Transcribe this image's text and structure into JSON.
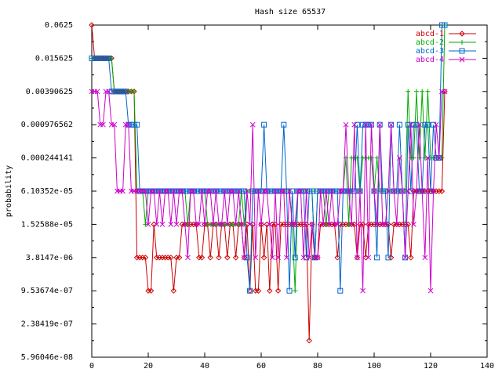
{
  "chart_data": {
    "type": "line",
    "title": "Hash size 65537",
    "xlabel": "",
    "ylabel": "probability",
    "xlim": [
      0,
      140
    ],
    "ylim_log2": [
      -24,
      -4
    ],
    "y_scale": "log2",
    "grid": false,
    "legend_position": "top-right",
    "x_ticks": [
      0,
      20,
      40,
      60,
      80,
      100,
      120,
      140
    ],
    "x_tick_labels": [
      "0",
      "20",
      "40",
      "60",
      "80",
      "100",
      "120",
      "140"
    ],
    "y_tick_labels": [
      "0.0625",
      "0.015625",
      "0.00390625",
      "0.000976562",
      "0.000244141",
      "6.10352e-05",
      "1.52588e-05",
      "3.8147e-06",
      "9.53674e-07",
      "2.38419e-07",
      "5.96046e-08"
    ],
    "y_values_unit": "log2(probability)",
    "series": [
      {
        "name": "abcd-1",
        "color": "#cc0000",
        "marker": "diamond",
        "x": [
          0,
          1,
          2,
          3,
          4,
          5,
          6,
          7,
          8,
          9,
          10,
          11,
          12,
          13,
          14,
          15,
          16,
          17,
          18,
          19,
          20,
          21,
          22,
          23,
          24,
          25,
          26,
          27,
          28,
          29,
          30,
          31,
          32,
          33,
          34,
          35,
          36,
          37,
          38,
          39,
          40,
          41,
          42,
          43,
          44,
          45,
          46,
          47,
          48,
          49,
          50,
          51,
          52,
          53,
          54,
          55,
          56,
          57,
          58,
          59,
          60,
          61,
          62,
          63,
          64,
          65,
          66,
          67,
          68,
          69,
          70,
          71,
          72,
          73,
          74,
          75,
          76,
          77,
          78,
          79,
          80,
          81,
          82,
          83,
          84,
          85,
          86,
          87,
          88,
          89,
          90,
          91,
          92,
          93,
          94,
          95,
          96,
          97,
          98,
          99,
          100,
          101,
          102,
          103,
          104,
          105,
          106,
          107,
          108,
          109,
          110,
          111,
          112,
          113,
          114,
          115,
          116,
          117,
          118,
          119,
          120,
          121,
          122,
          123,
          124,
          125
        ],
        "y": [
          -4,
          -6,
          -6,
          -6,
          -6,
          -6,
          -6,
          -6,
          -8,
          -8,
          -8,
          -8,
          -8,
          -8,
          -8,
          -8,
          -18,
          -18,
          -18,
          -18,
          -20,
          -20,
          -16,
          -18,
          -18,
          -18,
          -18,
          -18,
          -18,
          -20,
          -18,
          -18,
          -16,
          -16,
          -16,
          -16,
          -16,
          -16,
          -18,
          -18,
          -16,
          -16,
          -18,
          -16,
          -16,
          -18,
          -16,
          -16,
          -18,
          -16,
          -16,
          -18,
          -16,
          -16,
          -18,
          -16,
          -20,
          -16,
          -20,
          -20,
          -16,
          -18,
          -16,
          -20,
          -16,
          -16,
          -20,
          -16,
          -16,
          -16,
          -16,
          -16,
          -16,
          -16,
          -16,
          -16,
          -16,
          -23,
          -16,
          -18,
          -18,
          -16,
          -16,
          -16,
          -16,
          -16,
          -16,
          -18,
          -16,
          -16,
          -16,
          -16,
          -16,
          -16,
          -18,
          -16,
          -16,
          -18,
          -16,
          -16,
          -16,
          -16,
          -16,
          -16,
          -16,
          -16,
          -18,
          -16,
          -16,
          -16,
          -16,
          -16,
          -16,
          -18,
          -14,
          -14,
          -14,
          -14,
          -14,
          -14,
          -14,
          -14,
          -14,
          -14,
          -14,
          -8
        ],
        "x_note": "one point per x index 0-125"
      },
      {
        "name": "abcd-2",
        "color": "#00aa00",
        "marker": "plus",
        "x": [
          0,
          1,
          2,
          3,
          4,
          5,
          6,
          7,
          8,
          9,
          10,
          11,
          12,
          13,
          14,
          15,
          16,
          17,
          18,
          19,
          20,
          21,
          22,
          23,
          24,
          25,
          26,
          27,
          28,
          29,
          30,
          31,
          32,
          33,
          34,
          35,
          36,
          37,
          38,
          39,
          40,
          41,
          42,
          43,
          44,
          45,
          46,
          47,
          48,
          49,
          50,
          51,
          52,
          53,
          54,
          55,
          56,
          57,
          58,
          59,
          60,
          61,
          62,
          63,
          64,
          65,
          66,
          67,
          68,
          69,
          70,
          71,
          72,
          73,
          74,
          75,
          76,
          77,
          78,
          79,
          80,
          81,
          82,
          83,
          84,
          85,
          86,
          87,
          88,
          89,
          90,
          91,
          92,
          93,
          94,
          95,
          96,
          97,
          98,
          99,
          100,
          101,
          102,
          103,
          104,
          105,
          106,
          107,
          108,
          109,
          110,
          111,
          112,
          113,
          114,
          115,
          116,
          117,
          118,
          119,
          120,
          121,
          122,
          123,
          124,
          125
        ],
        "y": [
          -6,
          -6,
          -6,
          -6,
          -6,
          -6,
          -6,
          -6,
          -8,
          -8,
          -8,
          -8,
          -8,
          -8,
          -8,
          -8,
          -14,
          -14,
          -14,
          -16,
          -14,
          -14,
          -14,
          -14,
          -14,
          -14,
          -14,
          -14,
          -14,
          -14,
          -14,
          -14,
          -14,
          -14,
          -16,
          -14,
          -14,
          -14,
          -14,
          -14,
          -14,
          -16,
          -16,
          -16,
          -16,
          -16,
          -16,
          -16,
          -16,
          -16,
          -16,
          -16,
          -16,
          -14,
          -16,
          -14,
          -14,
          -14,
          -14,
          -14,
          -14,
          -14,
          -14,
          -14,
          -14,
          -14,
          -14,
          -14,
          -14,
          -14,
          -14,
          -16,
          -20,
          -14,
          -14,
          -14,
          -14,
          -14,
          -14,
          -18,
          -14,
          -14,
          -14,
          -16,
          -14,
          -14,
          -14,
          -14,
          -14,
          -14,
          -12,
          -16,
          -12,
          -12,
          -12,
          -14,
          -12,
          -12,
          -12,
          -12,
          -14,
          -12,
          -14,
          -14,
          -14,
          -14,
          -14,
          -14,
          -14,
          -14,
          -14,
          -14,
          -8,
          -12,
          -12,
          -8,
          -12,
          -8,
          -12,
          -8,
          -12,
          -12,
          -12,
          -12,
          -12,
          -4
        ],
        "x_note": "one point per x index 0-125"
      },
      {
        "name": "abcd-3",
        "color": "#0066cc",
        "marker": "square",
        "x": [
          0,
          1,
          2,
          3,
          4,
          5,
          6,
          7,
          8,
          9,
          10,
          11,
          12,
          13,
          14,
          15,
          16,
          17,
          18,
          19,
          20,
          21,
          22,
          23,
          24,
          25,
          26,
          27,
          28,
          29,
          30,
          31,
          32,
          33,
          34,
          35,
          36,
          37,
          38,
          39,
          40,
          41,
          42,
          43,
          44,
          45,
          46,
          47,
          48,
          49,
          50,
          51,
          52,
          53,
          54,
          55,
          56,
          57,
          58,
          59,
          60,
          61,
          62,
          63,
          64,
          65,
          66,
          67,
          68,
          69,
          70,
          71,
          72,
          73,
          74,
          75,
          76,
          77,
          78,
          79,
          80,
          81,
          82,
          83,
          84,
          85,
          86,
          87,
          88,
          89,
          90,
          91,
          92,
          93,
          94,
          95,
          96,
          97,
          98,
          99,
          100,
          101,
          102,
          103,
          104,
          105,
          106,
          107,
          108,
          109,
          110,
          111,
          112,
          113,
          114,
          115,
          116,
          117,
          118,
          119,
          120,
          121,
          122,
          123,
          124,
          125
        ],
        "y": [
          -6,
          -6,
          -6,
          -6,
          -6,
          -6,
          -6,
          -8,
          -8,
          -8,
          -8,
          -8,
          -8,
          -10,
          -10,
          -10,
          -10,
          -14,
          -14,
          -14,
          -14,
          -14,
          -14,
          -14,
          -14,
          -14,
          -14,
          -14,
          -14,
          -14,
          -14,
          -14,
          -14,
          -14,
          -14,
          -14,
          -14,
          -14,
          -14,
          -14,
          -14,
          -14,
          -14,
          -14,
          -14,
          -14,
          -14,
          -14,
          -14,
          -14,
          -14,
          -14,
          -14,
          -14,
          -14,
          -18,
          -20,
          -14,
          -14,
          -14,
          -14,
          -10,
          -14,
          -14,
          -14,
          -14,
          -14,
          -14,
          -10,
          -14,
          -20,
          -14,
          -18,
          -14,
          -14,
          -14,
          -18,
          -14,
          -14,
          -18,
          -14,
          -14,
          -14,
          -14,
          -14,
          -14,
          -14,
          -14,
          -20,
          -14,
          -14,
          -14,
          -14,
          -14,
          -10,
          -14,
          -10,
          -10,
          -10,
          -10,
          -14,
          -18,
          -10,
          -14,
          -14,
          -18,
          -10,
          -14,
          -14,
          -10,
          -14,
          -18,
          -10,
          -14,
          -10,
          -10,
          -14,
          -14,
          -10,
          -10,
          -14,
          -10,
          -12,
          -12,
          -4,
          -4
        ],
        "x_note": "one point per x index 0-125"
      },
      {
        "name": "abcd-4",
        "color": "#cc00cc",
        "marker": "cross",
        "x": [
          0,
          1,
          2,
          3,
          4,
          5,
          6,
          7,
          8,
          9,
          10,
          11,
          12,
          13,
          14,
          15,
          16,
          17,
          18,
          19,
          20,
          21,
          22,
          23,
          24,
          25,
          26,
          27,
          28,
          29,
          30,
          31,
          32,
          33,
          34,
          35,
          36,
          37,
          38,
          39,
          40,
          41,
          42,
          43,
          44,
          45,
          46,
          47,
          48,
          49,
          50,
          51,
          52,
          53,
          54,
          55,
          56,
          57,
          58,
          59,
          60,
          61,
          62,
          63,
          64,
          65,
          66,
          67,
          68,
          69,
          70,
          71,
          72,
          73,
          74,
          75,
          76,
          77,
          78,
          79,
          80,
          81,
          82,
          83,
          84,
          85,
          86,
          87,
          88,
          89,
          90,
          91,
          92,
          93,
          94,
          95,
          96,
          97,
          98,
          99,
          100,
          101,
          102,
          103,
          104,
          105,
          106,
          107,
          108,
          109,
          110,
          111,
          112,
          113,
          114,
          115,
          116,
          117,
          118,
          119,
          120,
          121,
          122,
          123,
          124,
          125
        ],
        "y": [
          -8,
          -8,
          -8,
          -10,
          -10,
          -8,
          -8,
          -10,
          -10,
          -14,
          -14,
          -14,
          -10,
          -10,
          -14,
          -14,
          -14,
          -14,
          -14,
          -14,
          -16,
          -14,
          -14,
          -16,
          -14,
          -16,
          -14,
          -14,
          -16,
          -14,
          -16,
          -14,
          -14,
          -16,
          -18,
          -14,
          -14,
          -16,
          -16,
          -14,
          -16,
          -14,
          -14,
          -16,
          -14,
          -16,
          -16,
          -14,
          -16,
          -14,
          -14,
          -16,
          -14,
          -16,
          -18,
          -14,
          -16,
          -10,
          -18,
          -14,
          -16,
          -14,
          -14,
          -16,
          -18,
          -14,
          -18,
          -14,
          -14,
          -18,
          -14,
          -16,
          -16,
          -14,
          -14,
          -18,
          -14,
          -18,
          -16,
          -18,
          -18,
          -14,
          -16,
          -14,
          -16,
          -14,
          -16,
          -16,
          -14,
          -14,
          -10,
          -14,
          -16,
          -10,
          -18,
          -14,
          -20,
          -10,
          -18,
          -10,
          -14,
          -16,
          -10,
          -16,
          -16,
          -14,
          -10,
          -14,
          -16,
          -12,
          -14,
          -18,
          -14,
          -10,
          -16,
          -14,
          -10,
          -14,
          -18,
          -12,
          -20,
          -14,
          -10,
          -12,
          -8,
          -8
        ],
        "x_note": "one point per x index 0-125"
      }
    ]
  }
}
